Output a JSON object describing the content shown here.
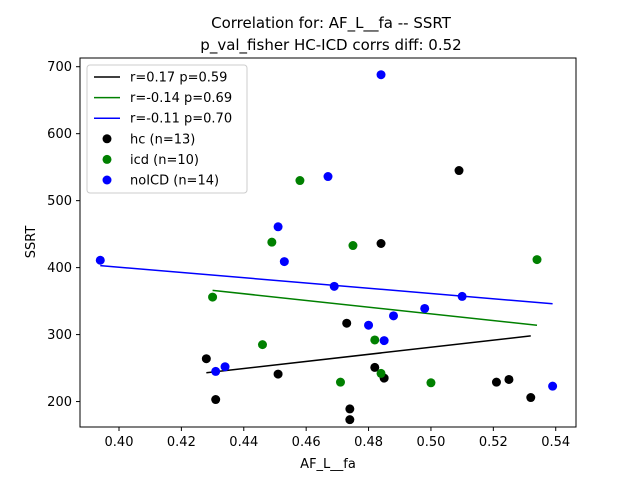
{
  "chart_data": {
    "type": "scatter",
    "title": "Correlation for: AF_L__fa -- SSRT",
    "subtitle": "p_val_fisher HC-ICD corrs diff: 0.52",
    "xlabel": "AF_L__fa",
    "ylabel": "SSRT",
    "xlim": [
      0.3875,
      0.5465
    ],
    "ylim": [
      162,
      713
    ],
    "xticks": [
      0.4,
      0.42,
      0.44,
      0.46,
      0.48,
      0.5,
      0.52,
      0.54
    ],
    "xtick_labels": [
      "0.40",
      "0.42",
      "0.44",
      "0.46",
      "0.48",
      "0.50",
      "0.52",
      "0.54"
    ],
    "yticks": [
      200,
      300,
      400,
      500,
      600,
      700
    ],
    "ytick_labels": [
      "200",
      "300",
      "400",
      "500",
      "600",
      "700"
    ],
    "grid": false,
    "legend_position": "top-left",
    "series": [
      {
        "name": "hc (n=13)",
        "color": "#000000",
        "points": [
          [
            0.428,
            264
          ],
          [
            0.431,
            203
          ],
          [
            0.451,
            241
          ],
          [
            0.473,
            317
          ],
          [
            0.474,
            189
          ],
          [
            0.474,
            173
          ],
          [
            0.482,
            251
          ],
          [
            0.484,
            436
          ],
          [
            0.485,
            235
          ],
          [
            0.509,
            545
          ],
          [
            0.521,
            229
          ],
          [
            0.525,
            233
          ],
          [
            0.532,
            206
          ]
        ]
      },
      {
        "name": "icd (n=10)",
        "color": "#008000",
        "points": [
          [
            0.43,
            356
          ],
          [
            0.446,
            285
          ],
          [
            0.449,
            438
          ],
          [
            0.458,
            530
          ],
          [
            0.471,
            229
          ],
          [
            0.475,
            433
          ],
          [
            0.482,
            292
          ],
          [
            0.484,
            242
          ],
          [
            0.5,
            228
          ],
          [
            0.534,
            412
          ]
        ]
      },
      {
        "name": "noICD (n=14)",
        "color": "#0000ff",
        "points": [
          [
            0.394,
            411
          ],
          [
            0.431,
            245
          ],
          [
            0.434,
            252
          ],
          [
            0.451,
            461
          ],
          [
            0.453,
            409
          ],
          [
            0.467,
            536
          ],
          [
            0.469,
            372
          ],
          [
            0.48,
            314
          ],
          [
            0.484,
            688
          ],
          [
            0.485,
            291
          ],
          [
            0.488,
            328
          ],
          [
            0.498,
            339
          ],
          [
            0.51,
            357
          ],
          [
            0.539,
            223
          ]
        ]
      }
    ],
    "fit_lines": [
      {
        "name": "r=0.17 p=0.59",
        "color": "#000000",
        "x": [
          0.428,
          0.532
        ],
        "y": [
          243,
          298
        ]
      },
      {
        "name": "r=-0.14 p=0.69",
        "color": "#008000",
        "x": [
          0.43,
          0.534
        ],
        "y": [
          366,
          314
        ]
      },
      {
        "name": "r=-0.11 p=0.70",
        "color": "#0000ff",
        "x": [
          0.394,
          0.539
        ],
        "y": [
          403,
          346
        ]
      }
    ]
  }
}
